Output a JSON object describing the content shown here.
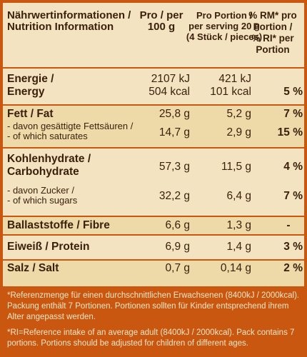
{
  "header": {
    "col1": [
      "Nährwertinformationen /",
      "Nutrition Information"
    ],
    "col2": [
      "Pro / per",
      "100 g"
    ],
    "col3": [
      "Pro Portion /",
      "per serving 20 g",
      "(4 Stück / pieces)"
    ],
    "col4": [
      "% RM* pro",
      "Portion /",
      "% RI* per",
      "Portion"
    ]
  },
  "rows": {
    "energy": {
      "name": [
        "Energie /",
        "Energy"
      ],
      "per100": [
        "2107 kJ",
        "504 kcal"
      ],
      "serving": [
        "421 kJ",
        "101 kcal"
      ],
      "ri": "5 %"
    },
    "fat": {
      "name": "Fett / Fat",
      "per100": "25,8 g",
      "serving": "5,2 g",
      "ri": "7 %",
      "sub_name": [
        "- davon gesättigte Fettsäuren /",
        "- of which saturates"
      ],
      "sub_per100": "14,7 g",
      "sub_serving": "2,9 g",
      "sub_ri": "15 %"
    },
    "carbs": {
      "name": [
        "Kohlenhydrate /",
        "Carbohydrate"
      ],
      "per100": "57,3 g",
      "serving": "11,5 g",
      "ri": "4 %",
      "sub_name": [
        "- davon Zucker /",
        "- of which sugars"
      ],
      "sub_per100": "32,2 g",
      "sub_serving": "6,4 g",
      "sub_ri": "7 %"
    },
    "fibre": {
      "name": "Ballaststoffe / Fibre",
      "per100": "6,6 g",
      "serving": "1,3 g",
      "ri": "-"
    },
    "protein": {
      "name": "Eiweiß / Protein",
      "per100": "6,9 g",
      "serving": "1,4 g",
      "ri": "3 %"
    },
    "salt": {
      "name": "Salz / Salt",
      "per100": "0,7 g",
      "serving": "0,14 g",
      "ri": "2 %"
    }
  },
  "footnote": {
    "de": [
      "*Referenzmenge für einen durchschnittlichen Erwachsenen (8400kJ / 2000kcal).",
      "Packung enthält 7 Portionen. Portionen sollten für Kinder entsprechend ihrem",
      "Alter angepasst werden."
    ],
    "en": [
      "*RI=Reference intake of an average adult (8400kJ / 2000kcal). Pack contains 7",
      "portions. Portions should be adjusted for children of different ages."
    ]
  },
  "colors": {
    "background": "#c9570f",
    "panel": "#f3e3c1",
    "panel_alt": "#eed9a8",
    "text": "#3a1f0b",
    "footnote_text": "#f6e6c8"
  }
}
